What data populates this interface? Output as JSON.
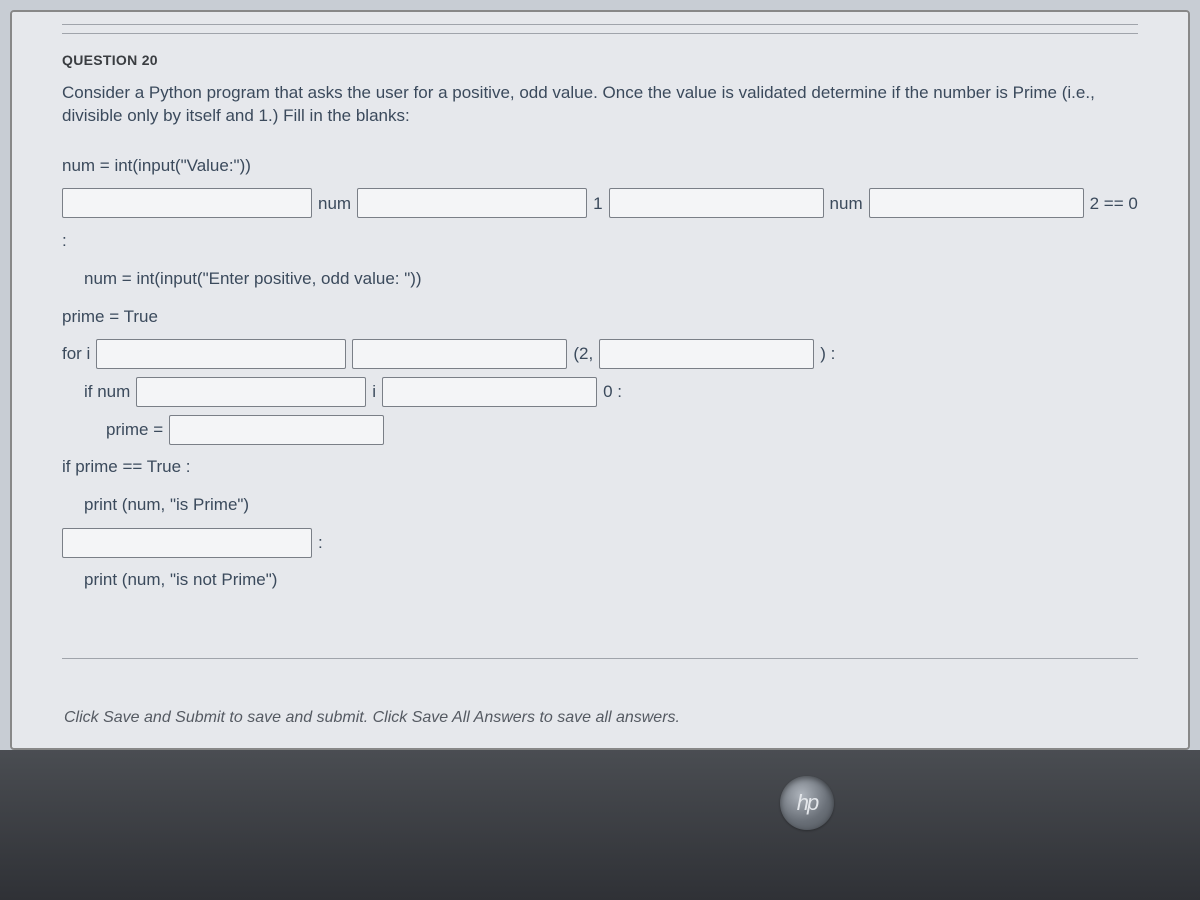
{
  "question_label": "QUESTION 20",
  "prompt": "Consider a Python program that asks the user for a positive, odd value.  Once the value is validated determine if the number is Prime (i.e., divisible only by itself and 1.)  Fill in the blanks:",
  "code": {
    "line1": "num = int(input(\"Value:\"))",
    "line2_seg1": "num",
    "line2_seg2": "1",
    "line2_seg3": "num",
    "line2_seg4": "2 == 0",
    "colon": ":",
    "line3": "num = int(input(\"Enter positive, odd value: \"))",
    "line4": "prime = True",
    "line5_a": "for i",
    "line5_b": "(2,",
    "line5_c": ") :",
    "line6_a": "if num",
    "line6_b": "i",
    "line6_c": "0 :",
    "line7": "prime =",
    "line8": "if prime == True :",
    "line9": "print (num, \"is Prime\")",
    "line10_after": ":",
    "line11": "print (num, \"is not Prime\")"
  },
  "footer_hint": "Click Save and Submit to save and submit. Click Save All Answers to save all answers.",
  "hp_text": "hp",
  "colors": {
    "page_bg": "#e6e8ec",
    "text": "#3b4a5c",
    "input_border": "#7a7f87",
    "bezel": "#3a3d42"
  }
}
